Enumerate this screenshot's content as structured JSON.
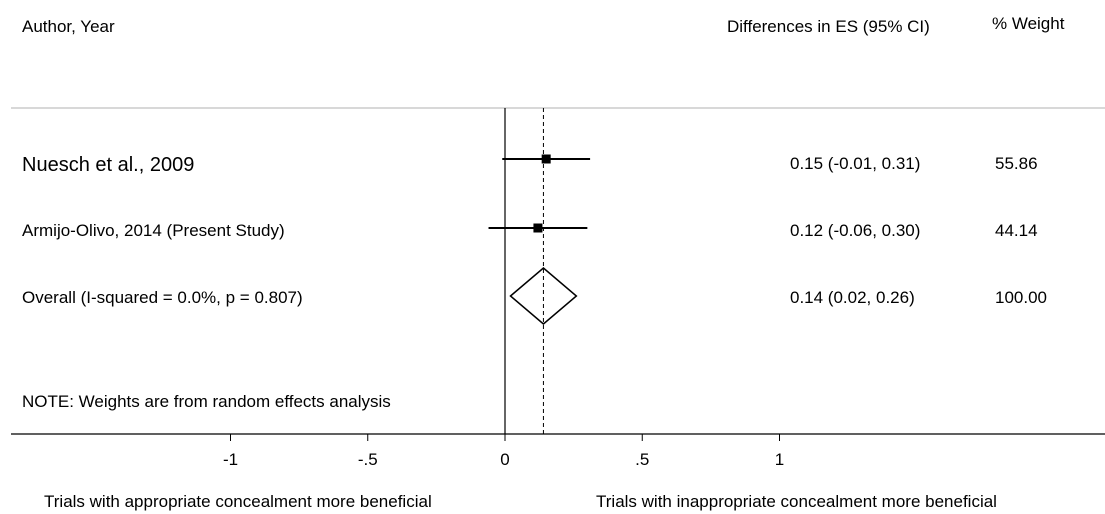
{
  "header": {
    "author_label": "Author, Year",
    "es_label": "Differences in ES (95% CI)",
    "weight_label": "% Weight"
  },
  "note": "NOTE:  Weights are from random  effects analysis",
  "footer": {
    "left_label": "Trials with appropriate concealment more beneficial",
    "right_label": "Trials with inappropriate concealment more beneficial"
  },
  "chart_data": {
    "type": "forest",
    "x_ticks": [
      -1,
      -0.5,
      0,
      0.5,
      1
    ],
    "x_tick_labels": [
      "-1",
      "-.5",
      "0",
      ".5",
      "1"
    ],
    "reference_line": 0,
    "overall_line": 0.14,
    "studies": [
      {
        "label": "Nuesch et al., 2009",
        "es": 0.15,
        "lo": -0.01,
        "hi": 0.31,
        "es_text": "0.15 (-0.01, 0.31)",
        "weight": "55.86"
      },
      {
        "label": "Armijo-Olivo,  2014  (Present  Study)",
        "es": 0.12,
        "lo": -0.06,
        "hi": 0.3,
        "es_text": "0.12 (-0.06, 0.30)",
        "weight": "44.14"
      }
    ],
    "overall": {
      "label": "Overall   (I-squared  =  0.0%,  p  =  0.807)",
      "es": 0.14,
      "lo": 0.02,
      "hi": 0.26,
      "es_text": "0.14 (0.02, 0.26)",
      "weight": "100.00"
    }
  }
}
